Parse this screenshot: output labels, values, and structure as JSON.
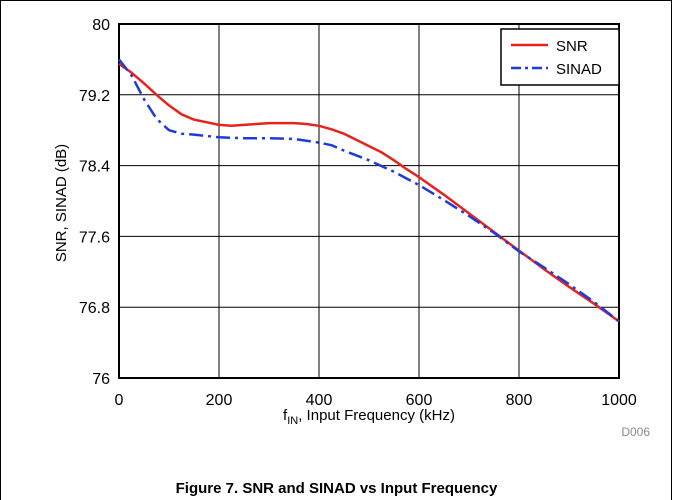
{
  "chart_data": {
    "type": "line",
    "xlabel_main": "f",
    "xlabel_sub": "IN",
    "xlabel_rest": ", Input Frequency (kHz)",
    "ylabel": "SNR, SINAD (dB)",
    "xlim": [
      0,
      1000
    ],
    "ylim": [
      76,
      80
    ],
    "xticks": [
      "0",
      "200",
      "400",
      "600",
      "800",
      "1000"
    ],
    "yticks": [
      "76",
      "76.8",
      "77.6",
      "78.4",
      "79.2",
      "80"
    ],
    "grid": true,
    "legend_position": "top-right",
    "series": [
      {
        "name": "SNR",
        "color": "#e8231e",
        "style": "solid",
        "x": [
          0,
          25,
          50,
          75,
          100,
          125,
          150,
          175,
          200,
          225,
          250,
          275,
          300,
          325,
          350,
          375,
          400,
          425,
          450,
          475,
          500,
          525,
          550,
          575,
          600,
          650,
          700,
          750,
          800,
          850,
          900,
          950,
          1000
        ],
        "y": [
          79.55,
          79.45,
          79.33,
          79.2,
          79.08,
          78.98,
          78.92,
          78.89,
          78.86,
          78.85,
          78.86,
          78.87,
          78.88,
          78.88,
          78.88,
          78.87,
          78.85,
          78.81,
          78.76,
          78.69,
          78.62,
          78.55,
          78.46,
          78.36,
          78.27,
          78.07,
          77.86,
          77.65,
          77.44,
          77.23,
          77.03,
          76.84,
          76.64
        ]
      },
      {
        "name": "SINAD",
        "color": "#1e3cd7",
        "style": "dashdot",
        "x": [
          0,
          25,
          50,
          75,
          100,
          125,
          150,
          200,
          250,
          300,
          350,
          400,
          425,
          450,
          500,
          550,
          600,
          650,
          700,
          750,
          800,
          850,
          900,
          950,
          1000
        ],
        "y": [
          79.6,
          79.42,
          79.15,
          78.93,
          78.8,
          78.76,
          78.75,
          78.72,
          78.71,
          78.71,
          78.7,
          78.66,
          78.63,
          78.57,
          78.46,
          78.33,
          78.18,
          78.01,
          77.83,
          77.64,
          77.43,
          77.25,
          77.06,
          76.86,
          76.64
        ]
      }
    ]
  },
  "figure_code": "D006",
  "caption": "Figure 7. SNR and SINAD vs Input Frequency"
}
